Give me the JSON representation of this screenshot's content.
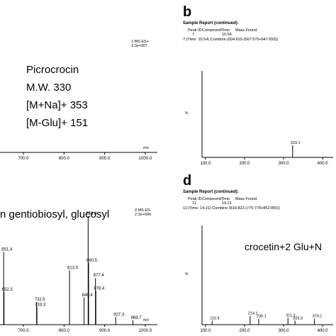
{
  "chart_data": [
    {
      "type": "stem",
      "scan": "1:MS ES+",
      "intensity": "3.0e+007",
      "xlabel": "m/z",
      "annotations": [
        "Picrocrocin",
        "M.W. 330",
        "[M+Na]+ 353",
        "[M-Glu]+ 151"
      ],
      "xlim": [
        642.4,
        1029.8
      ],
      "ylim": [
        0,
        100
      ],
      "xticks": [
        {
          "value": 700,
          "label": "700.0"
        },
        {
          "value": 800,
          "label": "800.0"
        },
        {
          "value": 900,
          "label": "900.0"
        },
        {
          "value": 1000,
          "label": "1000.0"
        }
      ]
    },
    {
      "type": "stem",
      "panel_label": "b",
      "report_title": "Sample Report (continued):",
      "table_header": [
        "Peak ID",
        "Compound",
        "Time",
        "Mass Found"
      ],
      "table_row": [
        "7",
        "",
        "10.54",
        ""
      ],
      "scan_line": "7:(Time: 10.54) Combine (604:610-(567:570+647:650))",
      "ylabel": "%",
      "xlim": [
        91,
        427
      ],
      "ylim": [
        0,
        100
      ],
      "xticks": [
        {
          "value": 100,
          "label": "100.0"
        },
        {
          "value": 200,
          "label": "200.0"
        },
        {
          "value": 300,
          "label": "300.0"
        },
        {
          "value": 400,
          "label": "400.0"
        }
      ],
      "x": [
        323.1
      ],
      "values": [
        14
      ]
    },
    {
      "type": "stem",
      "scan": "2:MS ES-",
      "intensity": "2.3e+006",
      "xlabel": "m/z",
      "annotations": [
        "n gentiobiosyl, glucosyl"
      ],
      "xlim": [
        642.4,
        1029.8
      ],
      "ylim": [
        0,
        100
      ],
      "xticks": [
        {
          "value": 700,
          "label": "700.0"
        },
        {
          "value": 800,
          "label": "800.0"
        },
        {
          "value": 900,
          "label": "900.0"
        },
        {
          "value": 1000,
          "label": "1000.0"
        }
      ],
      "x": [
        651.4,
        652.3,
        732.5,
        733.3,
        813.5,
        849.4,
        859.4,
        860.5,
        877.4,
        878.4,
        927.3,
        969.7
      ],
      "values": [
        67,
        30,
        21,
        16,
        50,
        25,
        100,
        57,
        43,
        31,
        7,
        4
      ]
    },
    {
      "type": "stem",
      "panel_label": "d",
      "report_title": "Sample Report (continued):",
      "table_header": [
        "Peak ID",
        "Compound",
        "Time",
        "Mass Found"
      ],
      "table_row": [
        "11",
        "",
        "14.21",
        ""
      ],
      "scan_line": "11:(Time: 14.21) Combine (816:822-(775:778+852:855))",
      "ylabel": "%",
      "annotations": [
        "crocetin+2 Glu+N"
      ],
      "xlim": [
        91,
        427
      ],
      "ylim": [
        0,
        100
      ],
      "xticks": [
        {
          "value": 100,
          "label": "100.0"
        },
        {
          "value": 200,
          "label": "200.0"
        },
        {
          "value": 300,
          "label": "300.0"
        },
        {
          "value": 400,
          "label": "400.0"
        }
      ],
      "x": [
        116.9,
        214.1,
        236.1,
        311.2,
        329.3,
        379.1
      ],
      "values": [
        4,
        9,
        6,
        7,
        4,
        6
      ]
    }
  ]
}
